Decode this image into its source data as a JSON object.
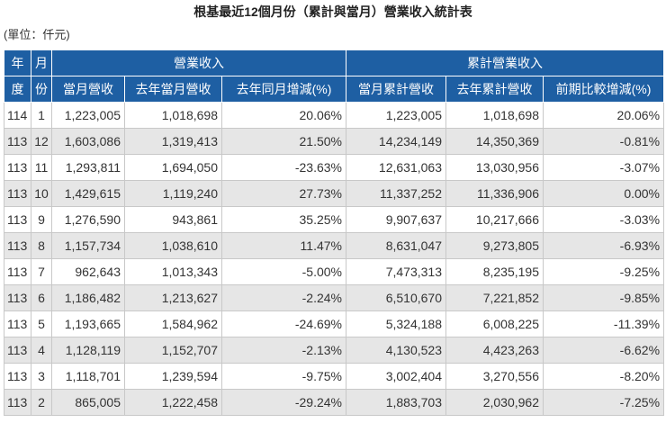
{
  "title": "根基最近12個月份（累計與當月）營業收入統計表",
  "unit_note": "(單位：仟元)",
  "headers": {
    "year_1": "年",
    "year_2": "度",
    "month_1": "月",
    "month_2": "份",
    "group_monthly": "營業收入",
    "group_cumulative": "累計營業收入",
    "cols": [
      "當月營收",
      "去年當月營收",
      "去年同月增減(%)",
      "當月累計營收",
      "去年累計營收",
      "前期比較增減(%)"
    ]
  },
  "rows": [
    {
      "year": "114",
      "month": "1",
      "cells": [
        "1,223,005",
        "1,018,698",
        "20.06%",
        "1,223,005",
        "1,018,698",
        "20.06%"
      ]
    },
    {
      "year": "113",
      "month": "12",
      "cells": [
        "1,603,086",
        "1,319,413",
        "21.50%",
        "14,234,149",
        "14,350,369",
        "-0.81%"
      ]
    },
    {
      "year": "113",
      "month": "11",
      "cells": [
        "1,293,811",
        "1,694,050",
        "-23.63%",
        "12,631,063",
        "13,030,956",
        "-3.07%"
      ]
    },
    {
      "year": "113",
      "month": "10",
      "cells": [
        "1,429,615",
        "1,119,240",
        "27.73%",
        "11,337,252",
        "11,336,906",
        "0.00%"
      ]
    },
    {
      "year": "113",
      "month": "9",
      "cells": [
        "1,276,590",
        "943,861",
        "35.25%",
        "9,907,637",
        "10,217,666",
        "-3.03%"
      ]
    },
    {
      "year": "113",
      "month": "8",
      "cells": [
        "1,157,734",
        "1,038,610",
        "11.47%",
        "8,631,047",
        "9,273,805",
        "-6.93%"
      ]
    },
    {
      "year": "113",
      "month": "7",
      "cells": [
        "962,643",
        "1,013,343",
        "-5.00%",
        "7,473,313",
        "8,235,195",
        "-9.25%"
      ]
    },
    {
      "year": "113",
      "month": "6",
      "cells": [
        "1,186,482",
        "1,213,627",
        "-2.24%",
        "6,510,670",
        "7,221,852",
        "-9.85%"
      ]
    },
    {
      "year": "113",
      "month": "5",
      "cells": [
        "1,193,665",
        "1,584,962",
        "-24.69%",
        "5,324,188",
        "6,008,225",
        "-11.39%"
      ]
    },
    {
      "year": "113",
      "month": "4",
      "cells": [
        "1,128,119",
        "1,152,707",
        "-2.13%",
        "4,130,523",
        "4,423,263",
        "-6.62%"
      ]
    },
    {
      "year": "113",
      "month": "3",
      "cells": [
        "1,118,701",
        "1,239,594",
        "-9.75%",
        "3,002,404",
        "3,270,556",
        "-8.20%"
      ]
    },
    {
      "year": "113",
      "month": "2",
      "cells": [
        "865,005",
        "1,222,458",
        "-29.24%",
        "1,883,703",
        "2,030,962",
        "-7.25%"
      ]
    }
  ],
  "colors": {
    "header_bg": "#1e5fa3",
    "header_text": "#ffffff",
    "row_alt_bg": "#e6e6e6",
    "grid_line": "#c8c8c8"
  }
}
